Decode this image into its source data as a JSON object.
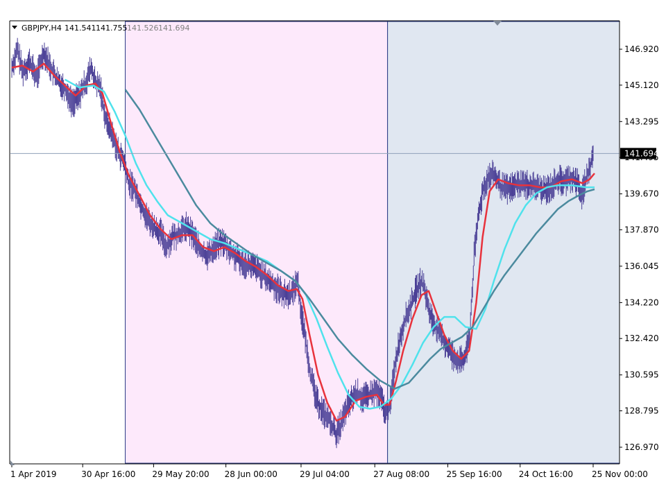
{
  "chart_data": {
    "type": "candlestick",
    "symbol_header": "GBPJPY,H4",
    "header_values": [
      "141.541",
      "141.755",
      "141.526",
      "141.694"
    ],
    "current_price_label": "141.694",
    "current_price": 141.694,
    "y_ticks": [
      "146.920",
      "145.120",
      "143.295",
      "141.495",
      "139.670",
      "137.870",
      "136.045",
      "134.220",
      "132.420",
      "130.595",
      "128.795",
      "126.970"
    ],
    "y_tick_values": [
      146.92,
      145.12,
      143.295,
      141.495,
      139.67,
      137.87,
      136.045,
      134.22,
      132.42,
      130.595,
      128.795,
      126.97
    ],
    "ylim": [
      126.0,
      148.0
    ],
    "x_ticks": [
      "1 Apr 2019",
      "30 Apr 16:00",
      "29 May 20:00",
      "28 Jun 00:00",
      "29 Jul 04:00",
      "27 Aug 08:00",
      "25 Sep 16:00",
      "24 Oct 16:00",
      "25 Nov 00:00"
    ],
    "x_index_range": [
      0,
      820
    ],
    "x_tick_index": [
      0,
      100,
      200,
      302,
      408,
      512,
      615,
      717,
      820
    ],
    "shaded_regions": [
      {
        "from": 160,
        "to": 530,
        "color": "#fde9fb"
      },
      {
        "from": 530,
        "to": 858,
        "color": "#e0e7f1"
      }
    ],
    "price_path": [
      [
        0,
        146.0
      ],
      [
        8,
        146.9
      ],
      [
        15,
        145.8
      ],
      [
        25,
        146.3
      ],
      [
        35,
        145.5
      ],
      [
        45,
        146.8
      ],
      [
        55,
        146.0
      ],
      [
        65,
        145.3
      ],
      [
        75,
        145.0
      ],
      [
        85,
        144.2
      ],
      [
        95,
        144.6
      ],
      [
        105,
        145.3
      ],
      [
        112,
        146.0
      ],
      [
        118,
        145.2
      ],
      [
        125,
        145.0
      ],
      [
        132,
        143.5
      ],
      [
        140,
        142.8
      ],
      [
        150,
        141.8
      ],
      [
        158,
        141.3
      ],
      [
        165,
        140.2
      ],
      [
        172,
        140.0
      ],
      [
        180,
        139.3
      ],
      [
        190,
        138.5
      ],
      [
        200,
        138.0
      ],
      [
        210,
        137.7
      ],
      [
        218,
        137.0
      ],
      [
        226,
        137.5
      ],
      [
        236,
        137.7
      ],
      [
        246,
        138.0
      ],
      [
        256,
        137.6
      ],
      [
        266,
        136.8
      ],
      [
        276,
        136.6
      ],
      [
        286,
        137.0
      ],
      [
        296,
        137.3
      ],
      [
        306,
        136.9
      ],
      [
        316,
        136.5
      ],
      [
        326,
        136.2
      ],
      [
        336,
        136.1
      ],
      [
        346,
        135.9
      ],
      [
        356,
        135.5
      ],
      [
        366,
        135.2
      ],
      [
        376,
        134.9
      ],
      [
        386,
        134.6
      ],
      [
        396,
        134.7
      ],
      [
        403,
        135.4
      ],
      [
        408,
        133.8
      ],
      [
        415,
        132.2
      ],
      [
        422,
        130.5
      ],
      [
        430,
        129.3
      ],
      [
        440,
        128.7
      ],
      [
        450,
        128.2
      ],
      [
        458,
        127.6
      ],
      [
        466,
        128.3
      ],
      [
        476,
        129.2
      ],
      [
        486,
        129.7
      ],
      [
        496,
        129.4
      ],
      [
        506,
        129.6
      ],
      [
        514,
        129.8
      ],
      [
        522,
        129.3
      ],
      [
        528,
        128.6
      ],
      [
        534,
        129.2
      ],
      [
        540,
        131.0
      ],
      [
        546,
        132.2
      ],
      [
        554,
        133.3
      ],
      [
        562,
        134.0
      ],
      [
        570,
        134.8
      ],
      [
        578,
        135.3
      ],
      [
        584,
        134.6
      ],
      [
        590,
        133.6
      ],
      [
        598,
        133.0
      ],
      [
        606,
        132.5
      ],
      [
        614,
        132.0
      ],
      [
        622,
        131.6
      ],
      [
        630,
        131.3
      ],
      [
        638,
        131.3
      ],
      [
        646,
        132.6
      ],
      [
        652,
        136.5
      ],
      [
        658,
        138.5
      ],
      [
        664,
        139.8
      ],
      [
        672,
        140.5
      ],
      [
        680,
        140.6
      ],
      [
        690,
        140.0
      ],
      [
        700,
        139.9
      ],
      [
        710,
        140.1
      ],
      [
        720,
        140.2
      ],
      [
        730,
        140.1
      ],
      [
        740,
        140.0
      ],
      [
        750,
        139.8
      ],
      [
        760,
        140.0
      ],
      [
        770,
        140.4
      ],
      [
        780,
        140.3
      ],
      [
        790,
        140.5
      ],
      [
        798,
        140.2
      ],
      [
        804,
        139.6
      ],
      [
        810,
        140.4
      ],
      [
        816,
        141.0
      ],
      [
        820,
        141.694
      ]
    ],
    "series": [
      {
        "name": "",
        "color": "#e8323c",
        "points": [
          [
            0,
            146.0
          ],
          [
            15,
            146.1
          ],
          [
            30,
            145.8
          ],
          [
            45,
            146.2
          ],
          [
            60,
            145.6
          ],
          [
            75,
            145.1
          ],
          [
            90,
            144.6
          ],
          [
            105,
            145.1
          ],
          [
            118,
            145.2
          ],
          [
            128,
            144.7
          ],
          [
            140,
            143.2
          ],
          [
            152,
            141.8
          ],
          [
            165,
            140.6
          ],
          [
            180,
            139.6
          ],
          [
            195,
            138.6
          ],
          [
            210,
            137.9
          ],
          [
            225,
            137.4
          ],
          [
            240,
            137.6
          ],
          [
            255,
            137.6
          ],
          [
            270,
            137.0
          ],
          [
            285,
            136.8
          ],
          [
            300,
            137.0
          ],
          [
            315,
            136.7
          ],
          [
            330,
            136.3
          ],
          [
            345,
            136.0
          ],
          [
            360,
            135.6
          ],
          [
            375,
            135.1
          ],
          [
            390,
            134.8
          ],
          [
            402,
            134.9
          ],
          [
            410,
            134.4
          ],
          [
            420,
            132.6
          ],
          [
            432,
            130.6
          ],
          [
            445,
            129.2
          ],
          [
            458,
            128.3
          ],
          [
            470,
            128.5
          ],
          [
            485,
            129.3
          ],
          [
            500,
            129.5
          ],
          [
            515,
            129.6
          ],
          [
            525,
            129.1
          ],
          [
            533,
            129.1
          ],
          [
            542,
            130.3
          ],
          [
            552,
            131.8
          ],
          [
            565,
            133.4
          ],
          [
            578,
            134.6
          ],
          [
            588,
            134.8
          ],
          [
            598,
            133.8
          ],
          [
            610,
            132.6
          ],
          [
            622,
            131.8
          ],
          [
            634,
            131.4
          ],
          [
            645,
            131.8
          ],
          [
            655,
            134.2
          ],
          [
            664,
            137.5
          ],
          [
            674,
            139.8
          ],
          [
            686,
            140.4
          ],
          [
            700,
            140.2
          ],
          [
            715,
            140.1
          ],
          [
            730,
            140.1
          ],
          [
            745,
            140.0
          ],
          [
            760,
            140.0
          ],
          [
            775,
            140.3
          ],
          [
            790,
            140.4
          ],
          [
            805,
            140.2
          ],
          [
            815,
            140.4
          ],
          [
            822,
            140.7
          ]
        ]
      },
      {
        "name": "",
        "color": "#4fe2ec",
        "points": [
          [
            75,
            145.4
          ],
          [
            95,
            145.0
          ],
          [
            115,
            145.1
          ],
          [
            130,
            144.8
          ],
          [
            145,
            143.8
          ],
          [
            160,
            142.6
          ],
          [
            175,
            141.2
          ],
          [
            190,
            140.1
          ],
          [
            205,
            139.3
          ],
          [
            220,
            138.6
          ],
          [
            240,
            138.2
          ],
          [
            260,
            137.8
          ],
          [
            280,
            137.4
          ],
          [
            300,
            137.2
          ],
          [
            320,
            136.9
          ],
          [
            340,
            136.6
          ],
          [
            360,
            136.3
          ],
          [
            380,
            135.8
          ],
          [
            400,
            135.3
          ],
          [
            415,
            134.6
          ],
          [
            430,
            133.4
          ],
          [
            445,
            132.0
          ],
          [
            460,
            130.7
          ],
          [
            475,
            129.6
          ],
          [
            490,
            129.0
          ],
          [
            505,
            128.9
          ],
          [
            520,
            129.0
          ],
          [
            535,
            129.4
          ],
          [
            550,
            130.1
          ],
          [
            565,
            131.1
          ],
          [
            580,
            132.2
          ],
          [
            595,
            133.0
          ],
          [
            610,
            133.5
          ],
          [
            625,
            133.5
          ],
          [
            640,
            133.0
          ],
          [
            655,
            132.9
          ],
          [
            668,
            133.9
          ],
          [
            680,
            135.3
          ],
          [
            695,
            136.9
          ],
          [
            710,
            138.2
          ],
          [
            725,
            139.1
          ],
          [
            740,
            139.7
          ],
          [
            755,
            140.0
          ],
          [
            770,
            140.1
          ],
          [
            790,
            140.1
          ],
          [
            810,
            140.0
          ],
          [
            822,
            140.0
          ]
        ]
      },
      {
        "name": "",
        "color": "#4b8a9e",
        "points": [
          [
            160,
            144.9
          ],
          [
            180,
            143.9
          ],
          [
            200,
            142.7
          ],
          [
            220,
            141.5
          ],
          [
            240,
            140.3
          ],
          [
            260,
            139.1
          ],
          [
            280,
            138.2
          ],
          [
            300,
            137.6
          ],
          [
            320,
            137.1
          ],
          [
            340,
            136.6
          ],
          [
            360,
            136.2
          ],
          [
            380,
            135.8
          ],
          [
            400,
            135.3
          ],
          [
            420,
            134.4
          ],
          [
            440,
            133.4
          ],
          [
            460,
            132.4
          ],
          [
            480,
            131.6
          ],
          [
            500,
            130.9
          ],
          [
            520,
            130.3
          ],
          [
            540,
            129.9
          ],
          [
            560,
            130.2
          ],
          [
            575,
            130.8
          ],
          [
            590,
            131.4
          ],
          [
            605,
            131.9
          ],
          [
            620,
            132.2
          ],
          [
            635,
            132.5
          ],
          [
            650,
            133.0
          ],
          [
            665,
            133.9
          ],
          [
            680,
            134.8
          ],
          [
            695,
            135.6
          ],
          [
            710,
            136.3
          ],
          [
            725,
            137.0
          ],
          [
            740,
            137.7
          ],
          [
            755,
            138.3
          ],
          [
            770,
            138.9
          ],
          [
            785,
            139.3
          ],
          [
            800,
            139.6
          ],
          [
            812,
            139.8
          ],
          [
            822,
            139.9
          ]
        ]
      }
    ],
    "colors": {
      "candle": "#4a3f96",
      "crosshair": "#8fa0b8",
      "axis": "#000000",
      "price_label_bg": "#000000",
      "price_label_text": "#ffffff",
      "region_border": "#2c3c86",
      "marker": "#7f8a98"
    },
    "grid": false,
    "legend": "none"
  }
}
